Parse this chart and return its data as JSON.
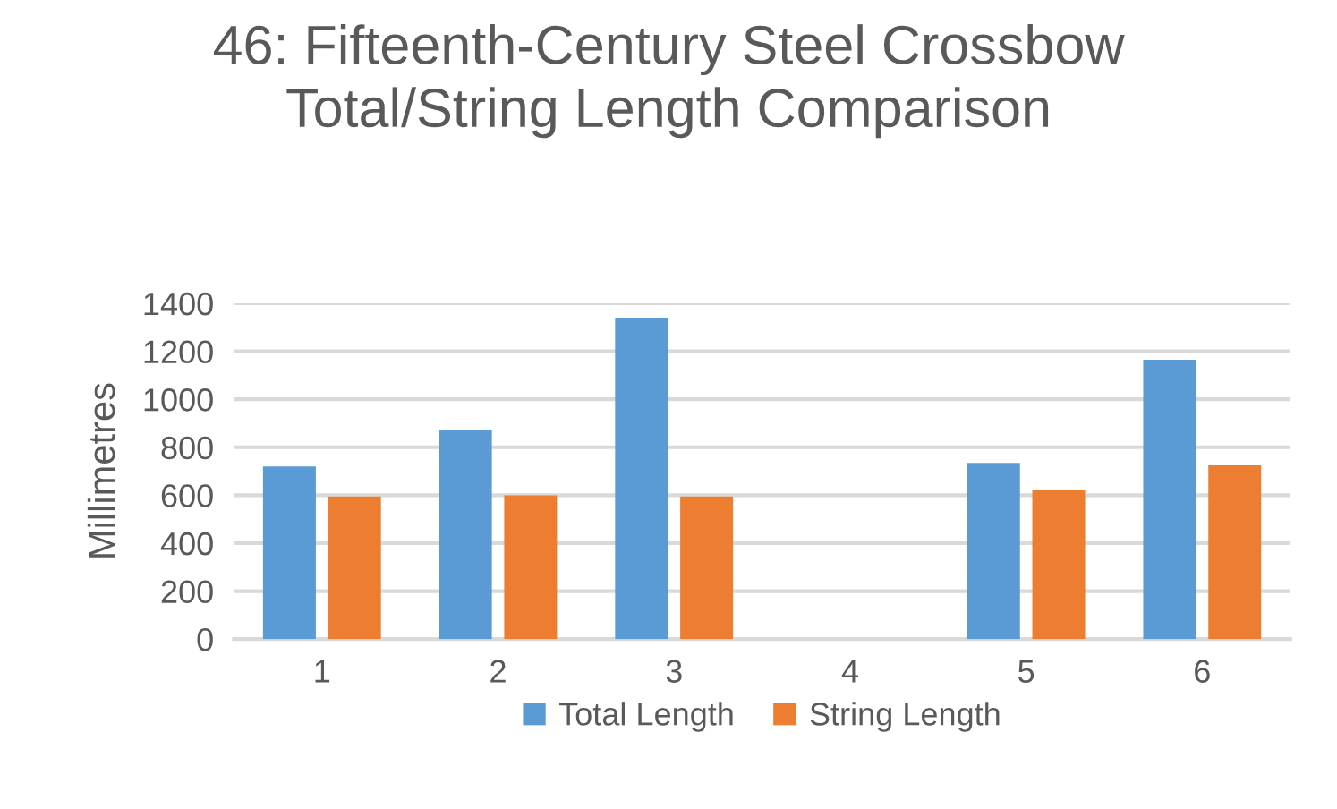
{
  "chart_data": {
    "type": "bar",
    "title": "46: Fifteenth-Century Steel Crossbow\nTotal/String Length Comparison",
    "ylabel": "Millimetres",
    "categories": [
      "1",
      "2",
      "3",
      "4",
      "5",
      "6"
    ],
    "series": [
      {
        "name": "Total Length",
        "color": "#5b9bd5",
        "values": [
          720,
          870,
          1340,
          null,
          735,
          1165
        ]
      },
      {
        "name": "String Length",
        "color": "#ed7d31",
        "values": [
          595,
          600,
          595,
          null,
          620,
          725
        ]
      }
    ],
    "ylim": [
      0,
      1400
    ],
    "yticks": [
      0,
      200,
      400,
      600,
      800,
      1000,
      1200,
      1400
    ],
    "grid": "y",
    "legend": "bottom"
  }
}
